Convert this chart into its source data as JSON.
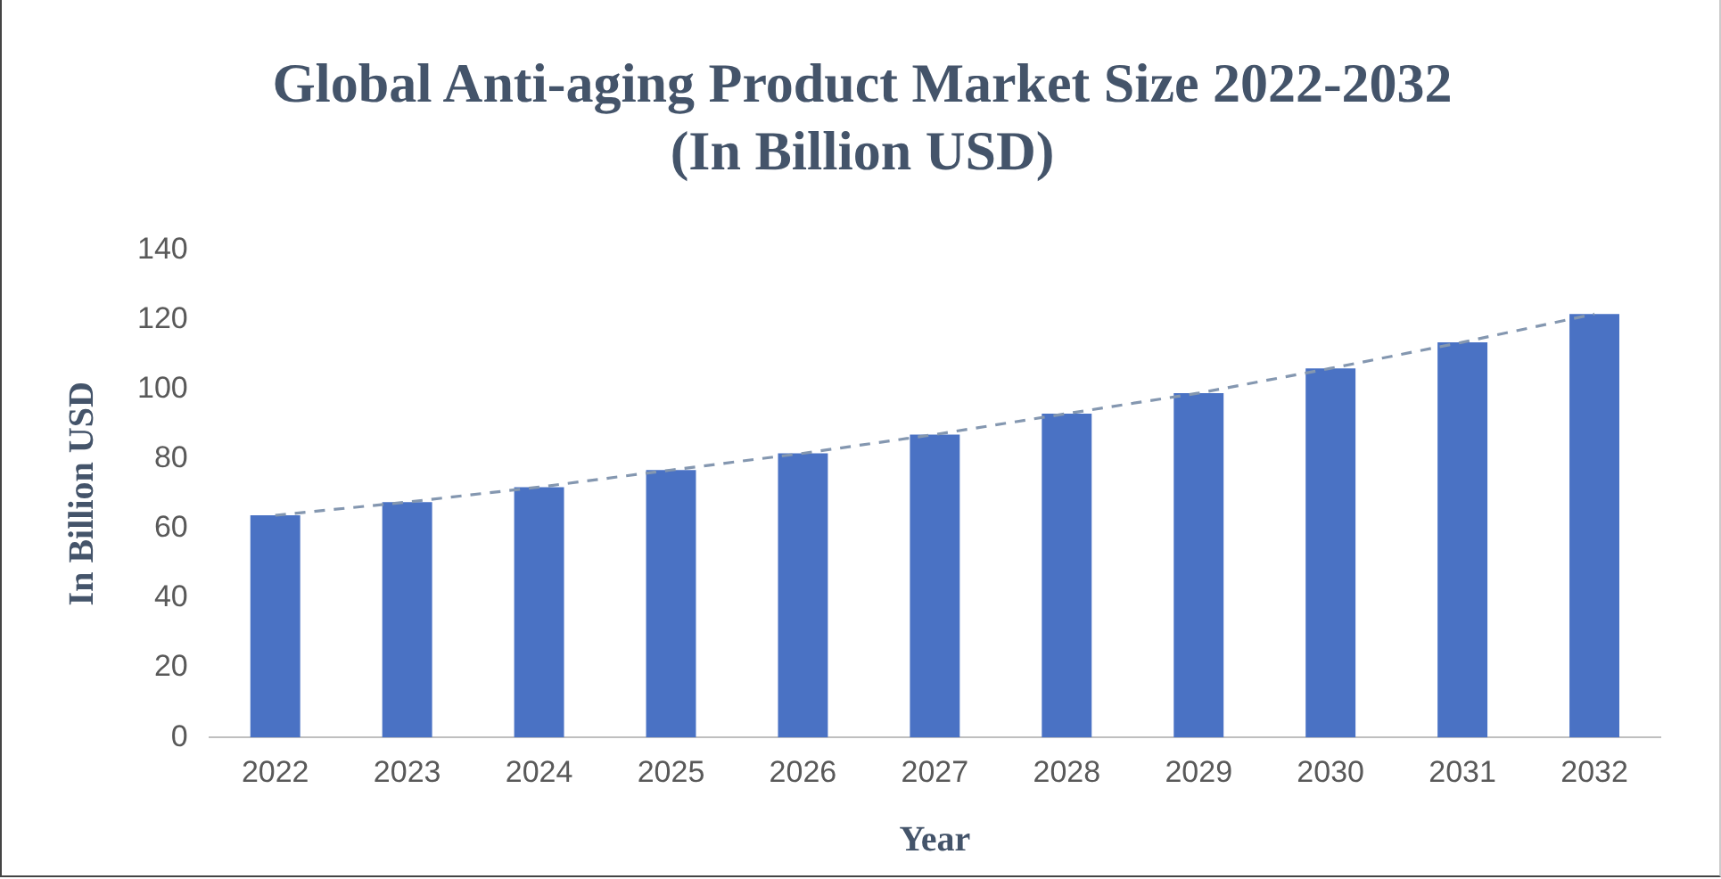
{
  "chart_data": {
    "type": "bar",
    "title": "Global Anti-aging Product Market Size 2022-2032",
    "subtitle": "(In Billion USD)",
    "xlabel": "Year",
    "ylabel": "In Billion USD",
    "categories": [
      "2022",
      "2023",
      "2024",
      "2025",
      "2026",
      "2027",
      "2028",
      "2029",
      "2030",
      "2031",
      "2032"
    ],
    "series": [
      {
        "color": "#4a72c4",
        "values": [
          63.8,
          67.6,
          71.9,
          76.8,
          81.6,
          87,
          93,
          98.9,
          106,
          113.5,
          121.6
        ]
      },
      {
        "type": "line",
        "color": "#8497b0",
        "line_style": "dashed",
        "marker": "none",
        "values": [
          63.8,
          67.6,
          71.9,
          76.8,
          81.6,
          87,
          93,
          98.9,
          106,
          113.5,
          121.6
        ]
      }
    ],
    "ylim": [
      0,
      140
    ],
    "yticks": [
      0,
      20,
      40,
      60,
      80,
      100,
      120,
      140
    ],
    "grid": false,
    "legend": false
  }
}
